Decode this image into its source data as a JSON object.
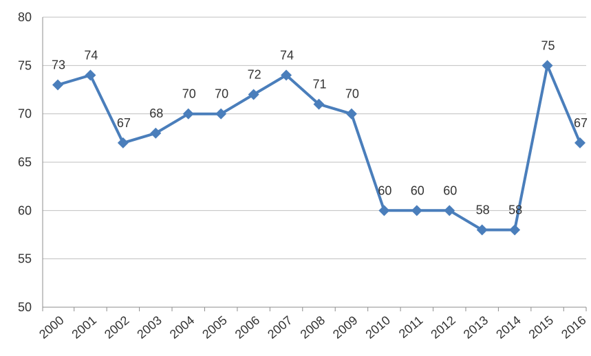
{
  "chart_data": {
    "type": "line",
    "title": "",
    "xlabel": "",
    "ylabel": "",
    "x": [
      "2000",
      "2001",
      "2002",
      "2003",
      "2004",
      "2005",
      "2006",
      "2007",
      "2008",
      "2009",
      "2010",
      "2011",
      "2012",
      "2013",
      "2014",
      "2015",
      "2016"
    ],
    "series": [
      {
        "values": [
          73,
          74,
          67,
          68,
          70,
          70,
          72,
          74,
          71,
          70,
          60,
          60,
          60,
          58,
          58,
          75,
          67
        ],
        "color": "#4a7ebb"
      }
    ],
    "ylim": [
      50,
      80
    ],
    "yticks": [
      "50",
      "55",
      "60",
      "65",
      "70",
      "75",
      "80"
    ],
    "grid": "horizontal",
    "legend": "none",
    "marker": "diamond",
    "data_labels": true
  },
  "colors": {
    "line": "#4a7ebb",
    "grid": "#bfbfbf",
    "axis": "#8c8c8c",
    "text": "#333333"
  }
}
